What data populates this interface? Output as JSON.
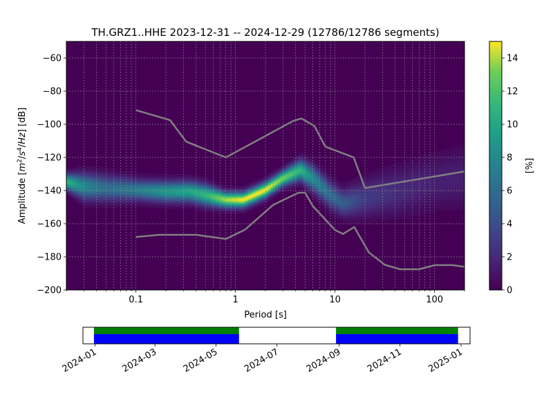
{
  "chart_data": [
    {
      "type": "heatmap",
      "title": "TH.GRZ1..HHE   2023-12-31 -- 2024-12-29  (12786/12786 segments)",
      "xlabel": "Period [s]",
      "ylabel_parts": [
        "Amplitude [",
        "m",
        "2",
        "/",
        "s",
        "4",
        "/",
        "Hz",
        "] [dB]"
      ],
      "x_scale": "log",
      "xlim": [
        0.02,
        200
      ],
      "ylim": [
        -200,
        -50
      ],
      "x_ticks": [
        0.1,
        1,
        10,
        100
      ],
      "x_tick_labels": [
        "0.1",
        "1",
        "10",
        "100"
      ],
      "y_ticks": [
        -200,
        -180,
        -160,
        -140,
        -120,
        -100,
        -80,
        -60
      ],
      "y_tick_labels": [
        "−200",
        "−180",
        "−160",
        "−140",
        "−120",
        "−100",
        "−80",
        "−60"
      ],
      "grid": true,
      "colormap": "viridis",
      "colorbar": {
        "label": "[%]",
        "range": [
          0,
          15
        ],
        "ticks": [
          0,
          2,
          4,
          6,
          8,
          10,
          12,
          14
        ],
        "tick_labels": [
          "0",
          "2",
          "4",
          "6",
          "8",
          "10",
          "12",
          "14"
        ]
      },
      "density_ridge": [
        {
          "period": 0.02,
          "db": -135,
          "peak_pct": 11,
          "spread_db": 3
        },
        {
          "period": 0.03,
          "db": -138,
          "peak_pct": 8,
          "spread_db": 5
        },
        {
          "period": 0.05,
          "db": -139,
          "peak_pct": 6,
          "spread_db": 5
        },
        {
          "period": 0.1,
          "db": -140,
          "peak_pct": 7,
          "spread_db": 4
        },
        {
          "period": 0.2,
          "db": -141,
          "peak_pct": 9,
          "spread_db": 4
        },
        {
          "period": 0.35,
          "db": -141,
          "peak_pct": 10,
          "spread_db": 4
        },
        {
          "period": 0.5,
          "db": -143,
          "peak_pct": 11,
          "spread_db": 4
        },
        {
          "period": 0.8,
          "db": -146,
          "peak_pct": 14,
          "spread_db": 3
        },
        {
          "period": 1.2,
          "db": -146,
          "peak_pct": 15,
          "spread_db": 3
        },
        {
          "period": 2.0,
          "db": -140,
          "peak_pct": 15,
          "spread_db": 3
        },
        {
          "period": 3.0,
          "db": -133,
          "peak_pct": 13,
          "spread_db": 3
        },
        {
          "period": 4.5,
          "db": -128,
          "peak_pct": 11,
          "spread_db": 4
        },
        {
          "period": 6.0,
          "db": -133,
          "peak_pct": 8,
          "spread_db": 5
        },
        {
          "period": 9.0,
          "db": -143,
          "peak_pct": 6,
          "spread_db": 5
        },
        {
          "period": 12,
          "db": -148,
          "peak_pct": 5,
          "spread_db": 5
        },
        {
          "period": 20,
          "db": -145,
          "peak_pct": 3,
          "spread_db": 7
        },
        {
          "period": 50,
          "db": -140,
          "peak_pct": 2,
          "spread_db": 9
        },
        {
          "period": 100,
          "db": -135,
          "peak_pct": 1.5,
          "spread_db": 10
        },
        {
          "period": 200,
          "db": -132,
          "peak_pct": 1.5,
          "spread_db": 11
        }
      ],
      "series": [
        {
          "name": "",
          "color": "#808080",
          "points": [
            [
              0.1,
              -91.5
            ],
            [
              0.22,
              -97.5
            ],
            [
              0.32,
              -110.5
            ],
            [
              0.8,
              -120
            ],
            [
              3.8,
              -98
            ],
            [
              4.6,
              -96.5
            ],
            [
              6.2,
              -101
            ],
            [
              8,
              -113.5
            ],
            [
              15.4,
              -120
            ],
            [
              20,
              -138.5
            ],
            [
              200,
              -128.5
            ]
          ]
        },
        {
          "name": "",
          "color": "#808080",
          "points": [
            [
              0.1,
              -168
            ],
            [
              0.17,
              -166.7
            ],
            [
              0.4,
              -166.7
            ],
            [
              0.8,
              -169.2
            ],
            [
              1.24,
              -163.7
            ],
            [
              2.4,
              -148.6
            ],
            [
              4.3,
              -141.3
            ],
            [
              5.0,
              -141.3
            ],
            [
              6.0,
              -149.4
            ],
            [
              10,
              -163.8
            ],
            [
              12,
              -166.2
            ],
            [
              15.6,
              -162
            ],
            [
              21.9,
              -177.4
            ],
            [
              31.6,
              -184.8
            ],
            [
              45,
              -187.5
            ],
            [
              70,
              -187.5
            ],
            [
              101,
              -185
            ],
            [
              150,
              -185
            ],
            [
              200,
              -186
            ]
          ]
        }
      ]
    },
    {
      "type": "timeline",
      "x_tick_labels": [
        "2024-01",
        "2024-03",
        "2024-05",
        "2024-07",
        "2024-09",
        "2024-11",
        "2025-01"
      ],
      "x_tick_dates": [
        "2024-01-01",
        "2024-03-01",
        "2024-05-01",
        "2024-07-01",
        "2024-09-01",
        "2024-11-01",
        "2025-01-01"
      ],
      "xlim": [
        "2023-12-20",
        "2025-01-10"
      ],
      "bars": [
        {
          "start": "2023-12-31",
          "end": "2024-05-24",
          "colors": [
            "#008000",
            "#0000ff"
          ]
        },
        {
          "start": "2024-08-29",
          "end": "2024-12-29",
          "colors": [
            "#008000",
            "#0000ff"
          ]
        }
      ]
    }
  ]
}
